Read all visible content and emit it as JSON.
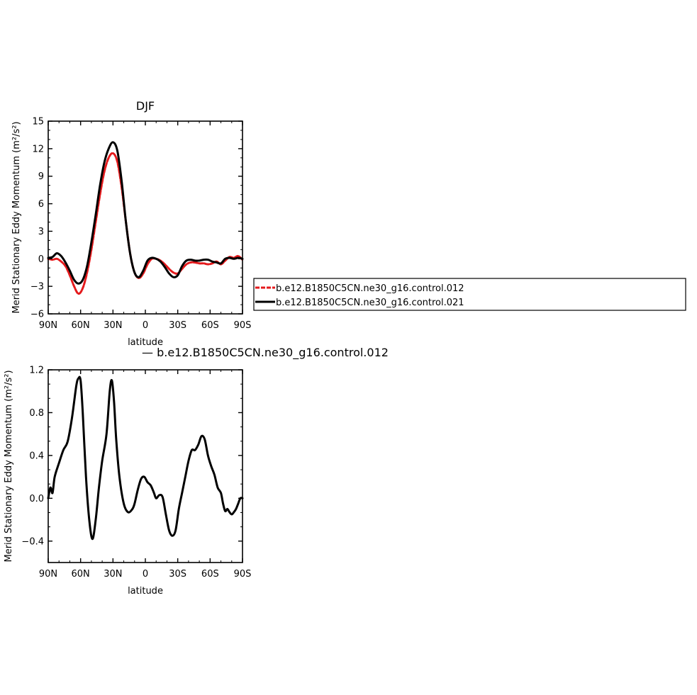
{
  "chart_data": [
    {
      "type": "line",
      "title": "DJF",
      "xlabel": "latitude",
      "ylabel": "Merid Stationary Eddy Momentum  (m²/s²)",
      "xlim": [
        90,
        -90
      ],
      "ylim": [
        -6,
        15
      ],
      "x_ticks": [
        90,
        60,
        30,
        0,
        -30,
        -60,
        -90
      ],
      "x_tick_labels": [
        "90N",
        "60N",
        "30N",
        "0",
        "30S",
        "60S",
        "90S"
      ],
      "y_ticks": [
        -6,
        -3,
        0,
        3,
        6,
        9,
        12,
        15
      ],
      "y_tick_labels": [
        "−6",
        "−3",
        "0",
        "3",
        "6",
        "9",
        "12",
        "15"
      ],
      "legend": "right, boxed",
      "series": [
        {
          "name": "b.e12.B1850C5CN.ne30_g16.control.012",
          "color": "#e41a1c",
          "style": "dashed",
          "x": [
            90,
            86,
            82,
            78,
            74,
            70,
            66,
            62,
            58,
            54,
            50,
            46,
            42,
            38,
            34,
            30,
            26,
            22,
            18,
            14,
            10,
            6,
            2,
            -2,
            -6,
            -10,
            -14,
            -18,
            -22,
            -26,
            -30,
            -34,
            -38,
            -42,
            -46,
            -50,
            -54,
            -58,
            -62,
            -66,
            -70,
            -74,
            -78,
            -82,
            -86,
            -90
          ],
          "y": [
            0.0,
            -0.1,
            0.0,
            -0.3,
            -0.8,
            -1.8,
            -3.0,
            -3.8,
            -3.2,
            -1.5,
            1.0,
            4.0,
            7.0,
            9.5,
            11.0,
            11.5,
            10.6,
            7.8,
            4.0,
            0.5,
            -1.5,
            -2.1,
            -1.6,
            -0.6,
            0.0,
            0.0,
            -0.2,
            -0.6,
            -1.1,
            -1.5,
            -1.6,
            -1.1,
            -0.6,
            -0.4,
            -0.4,
            -0.5,
            -0.5,
            -0.6,
            -0.5,
            -0.3,
            -0.6,
            -0.2,
            0.2,
            0.1,
            0.3,
            -0.1
          ]
        },
        {
          "name": "b.e12.B1850C5CN.ne30_g16.control.021",
          "color": "#000000",
          "style": "solid",
          "x": [
            90,
            86,
            82,
            78,
            74,
            70,
            66,
            62,
            58,
            54,
            50,
            46,
            42,
            38,
            34,
            30,
            26,
            22,
            18,
            14,
            10,
            6,
            2,
            -2,
            -6,
            -10,
            -14,
            -18,
            -22,
            -26,
            -30,
            -34,
            -38,
            -42,
            -46,
            -50,
            -54,
            -58,
            -62,
            -66,
            -70,
            -74,
            -78,
            -82,
            -86,
            -90
          ],
          "y": [
            0.1,
            0.2,
            0.6,
            0.3,
            -0.4,
            -1.3,
            -2.3,
            -2.7,
            -2.3,
            -0.8,
            1.8,
            4.8,
            8.0,
            10.5,
            12.0,
            12.7,
            11.8,
            8.5,
            4.0,
            0.5,
            -1.5,
            -2.0,
            -1.3,
            -0.2,
            0.1,
            0.0,
            -0.3,
            -0.9,
            -1.6,
            -2.0,
            -1.8,
            -0.8,
            -0.2,
            -0.1,
            -0.2,
            -0.2,
            -0.1,
            -0.1,
            -0.3,
            -0.4,
            -0.5,
            0.0,
            0.1,
            0.0,
            0.1,
            0.0
          ]
        }
      ]
    },
    {
      "type": "line",
      "title": "— b.e12.B1850C5CN.ne30_g16.control.012",
      "xlabel": "latitude",
      "ylabel": "Merid Stationary Eddy Momentum  (m²/s²)",
      "xlim": [
        90,
        -90
      ],
      "ylim": [
        -0.6,
        1.2
      ],
      "x_ticks": [
        90,
        60,
        30,
        0,
        -30,
        -60,
        -90
      ],
      "x_tick_labels": [
        "90N",
        "60N",
        "30N",
        "0",
        "30S",
        "60S",
        "90S"
      ],
      "y_ticks": [
        -0.4,
        0.0,
        0.4,
        0.8,
        1.2
      ],
      "y_tick_labels": [
        "−0.4",
        "0.0",
        "0.4",
        "0.8",
        "1.2"
      ],
      "series": [
        {
          "name": "b.e12.B1850C5CN.ne30_g16.control.012",
          "color": "#000000",
          "style": "solid",
          "x": [
            90,
            88,
            86,
            84,
            80,
            76,
            72,
            68,
            64,
            62,
            60,
            58,
            55,
            52,
            49,
            46,
            43,
            40,
            36,
            33,
            31,
            29,
            27,
            24,
            20,
            16,
            12,
            10,
            7,
            4,
            1,
            -2,
            -5,
            -8,
            -10,
            -13,
            -16,
            -19,
            -22,
            -25,
            -28,
            -31,
            -34,
            -37,
            -40,
            -43,
            -46,
            -49,
            -52,
            -55,
            -58,
            -61,
            -64,
            -67,
            -70,
            -72,
            -74,
            -76,
            -78,
            -80,
            -82,
            -84,
            -86,
            -88,
            -90
          ],
          "y": [
            0.0,
            0.1,
            0.05,
            0.2,
            0.33,
            0.45,
            0.53,
            0.75,
            1.05,
            1.12,
            1.1,
            0.8,
            0.2,
            -0.2,
            -0.38,
            -0.2,
            0.1,
            0.35,
            0.6,
            1.0,
            1.1,
            0.9,
            0.55,
            0.2,
            -0.05,
            -0.13,
            -0.1,
            -0.05,
            0.08,
            0.18,
            0.2,
            0.15,
            0.12,
            0.05,
            0.0,
            0.03,
            0.01,
            -0.15,
            -0.3,
            -0.35,
            -0.3,
            -0.1,
            0.05,
            0.2,
            0.35,
            0.45,
            0.45,
            0.5,
            0.58,
            0.55,
            0.4,
            0.3,
            0.22,
            0.1,
            0.05,
            -0.05,
            -0.12,
            -0.1,
            -0.13,
            -0.15,
            -0.13,
            -0.1,
            -0.05,
            0.0,
            0.0
          ]
        }
      ]
    }
  ]
}
